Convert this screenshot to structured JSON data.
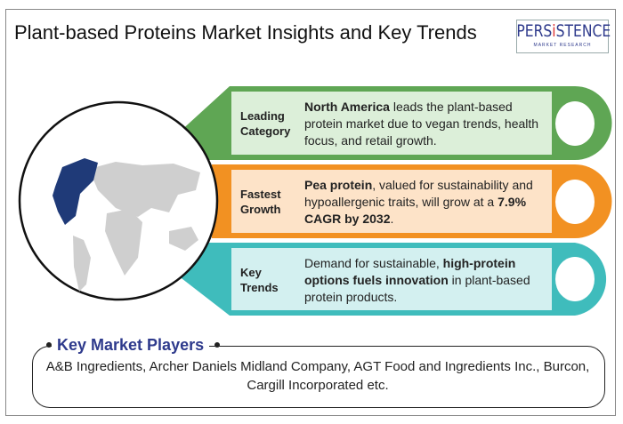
{
  "title": "Plant-based Proteins Market Insights and Key Trends",
  "logo": {
    "name": "PERSISTENCE",
    "tagline": "MARKET RESEARCH"
  },
  "colors": {
    "green": "#5fa654",
    "orange": "#f29122",
    "teal": "#3fbcbc",
    "navy": "#1f3a78",
    "accent": "#2e3a8c"
  },
  "map_icon": "world-map-north-america-highlighted",
  "cards": [
    {
      "label_1": "Leading",
      "label_2": "Category",
      "bold": "North America",
      "rest": " leads the plant-based protein market due to vegan trends, health focus, and retail growth."
    },
    {
      "label_1": "Fastest",
      "label_2": "Growth",
      "bold": "Pea protein",
      "mid": ", valued for sustainability and hypoallergenic traits, will grow at a ",
      "bold2": "7.9% CAGR by 2032",
      "end": "."
    },
    {
      "label_1": "Key",
      "label_2": "Trends",
      "pre": "Demand for sustainable, ",
      "bold": "high-protein options fuels innovation",
      "rest": " in plant-based protein products."
    }
  ],
  "players": {
    "title": "Key Market Players",
    "text": "A&B Ingredients, Archer Daniels Midland Company, AGT Food and Ingredients Inc., Burcon, Cargill Incorporated etc."
  }
}
